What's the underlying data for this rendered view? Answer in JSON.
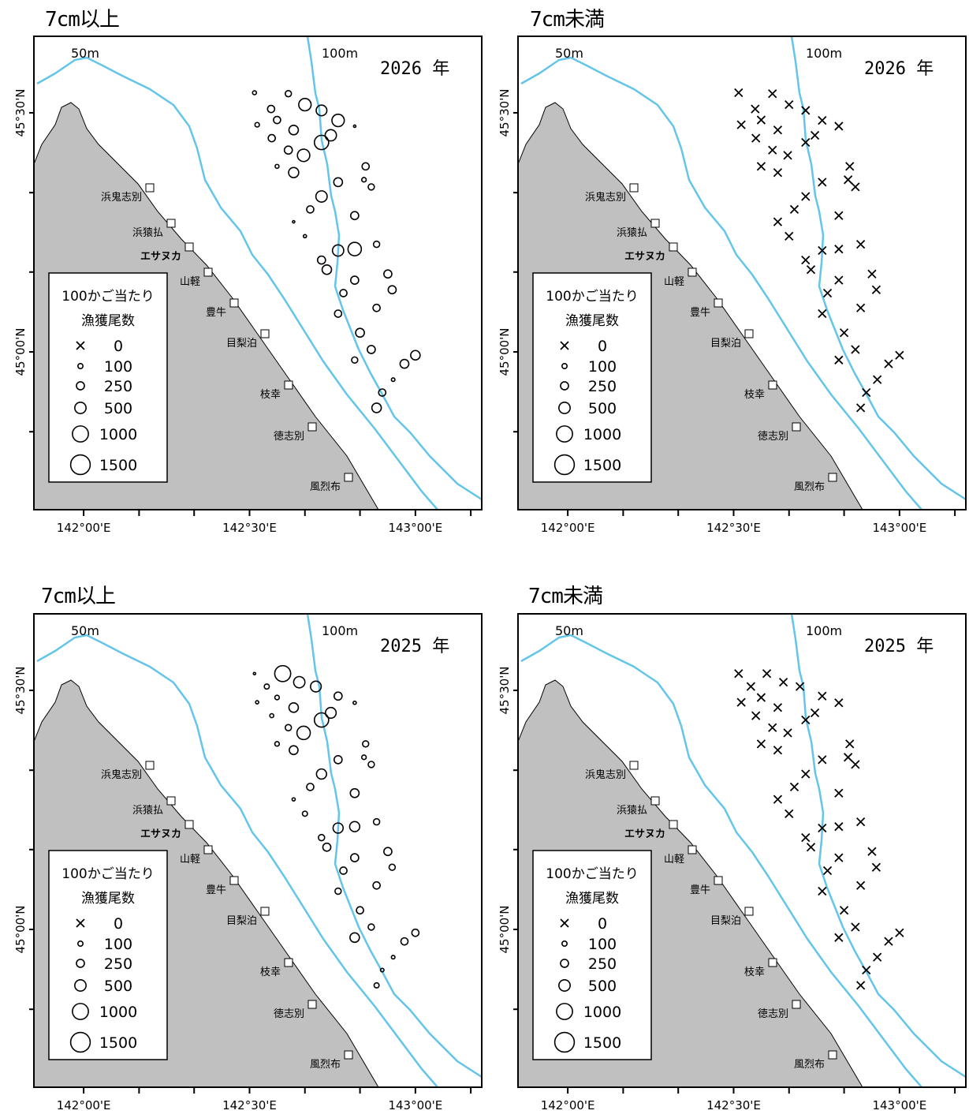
{
  "panels": [
    {
      "title": "7cm以上",
      "year": "2026 年",
      "mode": "large",
      "set": "a"
    },
    {
      "title": "7cm未満",
      "year": "2026 年",
      "mode": "small",
      "set": "a"
    },
    {
      "title": "7cm以上",
      "year": "2025 年",
      "mode": "large",
      "set": "b"
    },
    {
      "title": "7cm未満",
      "year": "2025 年",
      "mode": "small",
      "set": "b"
    }
  ],
  "depth_labels": [
    "50m",
    "100m"
  ],
  "lat_labels": [
    "45°30'N",
    "45°00'N"
  ],
  "lon_labels": [
    "142°00'E",
    "142°30'E",
    "143°00'E"
  ],
  "places": [
    "浜鬼志別",
    "浜猿払",
    "エサヌカ",
    "山軽",
    "豊牛",
    "目梨泊",
    "枝幸",
    "徳志別",
    "風烈布"
  ],
  "legend": {
    "title1": "100かご当たり",
    "title2": "漁獲尾数",
    "entries": [
      "0",
      "100",
      "250",
      "500",
      "1000",
      "1500"
    ]
  },
  "colors": {
    "contour": "#63c5ea",
    "land": "#c0c0c0",
    "frame": "#000000"
  },
  "stations": {
    "a": [
      {
        "lon": 142.515,
        "lat": 45.542,
        "c7": 60,
        "s7": 0
      },
      {
        "lon": 142.565,
        "lat": 45.508,
        "c7": 200,
        "s7": 0
      },
      {
        "lon": 142.617,
        "lat": 45.54,
        "c7": 150,
        "s7": 0
      },
      {
        "lon": 142.667,
        "lat": 45.517,
        "c7": 600,
        "s7": 0
      },
      {
        "lon": 142.717,
        "lat": 45.505,
        "c7": 450,
        "s7": 0
      },
      {
        "lon": 142.523,
        "lat": 45.475,
        "c7": 80,
        "s7": 0
      },
      {
        "lon": 142.583,
        "lat": 45.485,
        "c7": 200,
        "s7": 0
      },
      {
        "lon": 142.567,
        "lat": 45.447,
        "c7": 200,
        "s7": 0
      },
      {
        "lon": 142.633,
        "lat": 45.464,
        "c7": 350,
        "s7": 0
      },
      {
        "lon": 142.617,
        "lat": 45.422,
        "c7": 250,
        "s7": 0
      },
      {
        "lon": 142.663,
        "lat": 45.411,
        "c7": 600,
        "s7": 0
      },
      {
        "lon": 142.767,
        "lat": 45.484,
        "c7": 600,
        "s7": 0
      },
      {
        "lon": 142.717,
        "lat": 45.438,
        "c7": 800,
        "s7": 0
      },
      {
        "lon": 142.745,
        "lat": 45.453,
        "c7": 500,
        "s7": 0
      },
      {
        "lon": 142.817,
        "lat": 45.472,
        "c7": 20,
        "s7": 0
      },
      {
        "lon": 142.583,
        "lat": 45.388,
        "c7": 60,
        "s7": 0
      },
      {
        "lon": 142.633,
        "lat": 45.375,
        "c7": 400,
        "s7": 0
      },
      {
        "lon": 142.767,
        "lat": 45.355,
        "c7": 300,
        "s7": 0
      },
      {
        "lon": 142.717,
        "lat": 45.325,
        "c7": 500,
        "s7": 0
      },
      {
        "lon": 142.85,
        "lat": 45.388,
        "c7": 200,
        "s7": 0
      },
      {
        "lon": 142.867,
        "lat": 45.345,
        "c7": 150,
        "s7": 0
      },
      {
        "lon": 142.683,
        "lat": 45.298,
        "c7": 200,
        "s7": 0
      },
      {
        "lon": 142.633,
        "lat": 45.272,
        "c7": 10,
        "s7": 0
      },
      {
        "lon": 142.817,
        "lat": 45.285,
        "c7": 250,
        "s7": 0
      },
      {
        "lon": 142.767,
        "lat": 45.212,
        "c7": 500,
        "s7": 0
      },
      {
        "lon": 142.667,
        "lat": 45.242,
        "c7": 40,
        "s7": 0
      },
      {
        "lon": 142.733,
        "lat": 45.172,
        "c7": 350,
        "s7": 0
      },
      {
        "lon": 142.845,
        "lat": 45.36,
        "c7": 80,
        "s7": 0
      },
      {
        "lon": 142.817,
        "lat": 45.215,
        "c7": 700,
        "s7": 0
      },
      {
        "lon": 142.717,
        "lat": 45.192,
        "c7": 250,
        "s7": 0
      },
      {
        "lon": 142.883,
        "lat": 45.225,
        "c7": 150,
        "s7": 0
      },
      {
        "lon": 142.917,
        "lat": 45.163,
        "c7": 250,
        "s7": 0
      },
      {
        "lon": 142.817,
        "lat": 45.15,
        "c7": 250,
        "s7": 0
      },
      {
        "lon": 142.93,
        "lat": 45.13,
        "c7": 250,
        "s7": 0
      },
      {
        "lon": 142.783,
        "lat": 45.123,
        "c7": 200,
        "s7": 0
      },
      {
        "lon": 142.767,
        "lat": 45.08,
        "c7": 200,
        "s7": 0
      },
      {
        "lon": 142.883,
        "lat": 45.092,
        "c7": 200,
        "s7": 0
      },
      {
        "lon": 142.833,
        "lat": 45.04,
        "c7": 300,
        "s7": 0
      },
      {
        "lon": 142.867,
        "lat": 45.005,
        "c7": 250,
        "s7": 0
      },
      {
        "lon": 142.817,
        "lat": 44.983,
        "c7": 150,
        "s7": 0
      },
      {
        "lon": 142.967,
        "lat": 44.975,
        "c7": 300,
        "s7": 0
      },
      {
        "lon": 143.0,
        "lat": 44.993,
        "c7": 350,
        "s7": 0
      },
      {
        "lon": 142.933,
        "lat": 44.942,
        "c7": 50,
        "s7": 0
      },
      {
        "lon": 142.9,
        "lat": 44.915,
        "c7": 200,
        "s7": 0
      },
      {
        "lon": 142.883,
        "lat": 44.883,
        "c7": 350,
        "s7": 0
      }
    ],
    "b": [
      {
        "lon": 142.515,
        "lat": 45.535,
        "c7": 20,
        "s7": 0
      },
      {
        "lon": 142.552,
        "lat": 45.508,
        "c7": 100,
        "s7": 0
      },
      {
        "lon": 142.6,
        "lat": 45.535,
        "c7": 1000,
        "s7": 0
      },
      {
        "lon": 142.65,
        "lat": 45.517,
        "c7": 500,
        "s7": 0
      },
      {
        "lon": 142.7,
        "lat": 45.508,
        "c7": 450,
        "s7": 0
      },
      {
        "lon": 142.523,
        "lat": 45.475,
        "c7": 40,
        "s7": 0
      },
      {
        "lon": 142.583,
        "lat": 45.485,
        "c7": 80,
        "s7": 0
      },
      {
        "lon": 142.567,
        "lat": 45.447,
        "c7": 60,
        "s7": 0
      },
      {
        "lon": 142.633,
        "lat": 45.464,
        "c7": 350,
        "s7": 0
      },
      {
        "lon": 142.617,
        "lat": 45.422,
        "c7": 150,
        "s7": 0
      },
      {
        "lon": 142.663,
        "lat": 45.411,
        "c7": 700,
        "s7": 0
      },
      {
        "lon": 142.767,
        "lat": 45.488,
        "c7": 250,
        "s7": 0
      },
      {
        "lon": 142.717,
        "lat": 45.438,
        "c7": 800,
        "s7": 0
      },
      {
        "lon": 142.745,
        "lat": 45.453,
        "c7": 450,
        "s7": 0
      },
      {
        "lon": 142.817,
        "lat": 45.474,
        "c7": 40,
        "s7": 0
      },
      {
        "lon": 142.583,
        "lat": 45.388,
        "c7": 80,
        "s7": 0
      },
      {
        "lon": 142.633,
        "lat": 45.375,
        "c7": 300,
        "s7": 0
      },
      {
        "lon": 142.767,
        "lat": 45.355,
        "c7": 250,
        "s7": 0
      },
      {
        "lon": 142.717,
        "lat": 45.325,
        "c7": 400,
        "s7": 0
      },
      {
        "lon": 142.85,
        "lat": 45.388,
        "c7": 150,
        "s7": 0
      },
      {
        "lon": 142.867,
        "lat": 45.345,
        "c7": 150,
        "s7": 0
      },
      {
        "lon": 142.683,
        "lat": 45.298,
        "c7": 200,
        "s7": 0
      },
      {
        "lon": 142.633,
        "lat": 45.272,
        "c7": 40,
        "s7": 0
      },
      {
        "lon": 142.817,
        "lat": 45.285,
        "c7": 300,
        "s7": 0
      },
      {
        "lon": 142.767,
        "lat": 45.212,
        "c7": 400,
        "s7": 0
      },
      {
        "lon": 142.667,
        "lat": 45.242,
        "c7": 100,
        "s7": 0
      },
      {
        "lon": 142.733,
        "lat": 45.172,
        "c7": 250,
        "s7": 0
      },
      {
        "lon": 142.845,
        "lat": 45.36,
        "c7": 80,
        "s7": 0
      },
      {
        "lon": 142.817,
        "lat": 45.215,
        "c7": 400,
        "s7": 0
      },
      {
        "lon": 142.717,
        "lat": 45.192,
        "c7": 150,
        "s7": 0
      },
      {
        "lon": 142.883,
        "lat": 45.225,
        "c7": 150,
        "s7": 0
      },
      {
        "lon": 142.917,
        "lat": 45.163,
        "c7": 250,
        "s7": 0
      },
      {
        "lon": 142.817,
        "lat": 45.15,
        "c7": 250,
        "s7": 0
      },
      {
        "lon": 142.93,
        "lat": 45.13,
        "c7": 150,
        "s7": 0
      },
      {
        "lon": 142.783,
        "lat": 45.123,
        "c7": 200,
        "s7": 0
      },
      {
        "lon": 142.767,
        "lat": 45.08,
        "c7": 150,
        "s7": 0
      },
      {
        "lon": 142.883,
        "lat": 45.092,
        "c7": 200,
        "s7": 0
      },
      {
        "lon": 142.833,
        "lat": 45.04,
        "c7": 200,
        "s7": 0
      },
      {
        "lon": 142.867,
        "lat": 45.005,
        "c7": 150,
        "s7": 0
      },
      {
        "lon": 142.817,
        "lat": 44.983,
        "c7": 350,
        "s7": 0
      },
      {
        "lon": 142.967,
        "lat": 44.975,
        "c7": 200,
        "s7": 0
      },
      {
        "lon": 143.0,
        "lat": 44.993,
        "c7": 200,
        "s7": 0
      },
      {
        "lon": 142.933,
        "lat": 44.942,
        "c7": 50,
        "s7": 0
      },
      {
        "lon": 142.9,
        "lat": 44.915,
        "c7": 50,
        "s7": 0
      },
      {
        "lon": 142.883,
        "lat": 44.883,
        "c7": 100,
        "s7": 0
      }
    ]
  }
}
